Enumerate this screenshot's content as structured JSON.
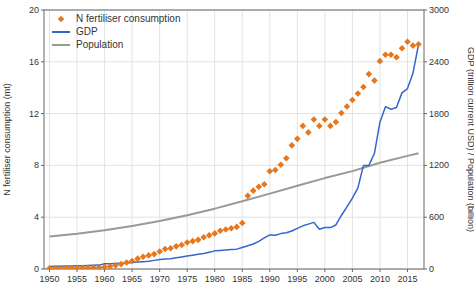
{
  "chart_data": {
    "type": "line",
    "title": "",
    "ylabel": "N fertiliser consumption (mt)",
    "y2label": "GDP (trillion current USD) / Population (billion)",
    "xlim": [
      1949,
      2018
    ],
    "xticks": [
      1950,
      1955,
      1960,
      1965,
      1970,
      1975,
      1980,
      1985,
      1990,
      1995,
      2000,
      2005,
      2010,
      2015
    ],
    "ylim": [
      0,
      20
    ],
    "yticks": [
      0,
      4,
      8,
      12,
      16,
      20
    ],
    "y2lim": [
      0,
      3000
    ],
    "y2ticks": [
      0,
      600,
      1200,
      1800,
      2400,
      3000
    ],
    "grid": true,
    "legend": "upper left",
    "series": [
      {
        "name": "N fertiliser consumption",
        "type": "scatter",
        "color": "#E8761A",
        "marker": "diamond",
        "x": [
          1950,
          1951,
          1952,
          1953,
          1954,
          1955,
          1956,
          1957,
          1958,
          1959,
          1960,
          1961,
          1962,
          1963,
          1964,
          1965,
          1966,
          1967,
          1968,
          1969,
          1970,
          1971,
          1972,
          1973,
          1974,
          1975,
          1976,
          1977,
          1978,
          1979,
          1980,
          1981,
          1982,
          1983,
          1984,
          1985,
          1986,
          1987,
          1988,
          1989,
          1990,
          1991,
          1992,
          1993,
          1994,
          1995,
          1996,
          1997,
          1998,
          1999,
          2000,
          2001,
          2002,
          2003,
          2004,
          2005,
          2006,
          2007,
          2008,
          2009,
          2010,
          2011,
          2012,
          2013,
          2014,
          2015,
          2016,
          2017
        ],
        "values": [
          0.05,
          0.06,
          0.06,
          0.07,
          0.07,
          0.08,
          0.09,
          0.1,
          0.11,
          0.12,
          0.15,
          0.2,
          0.28,
          0.38,
          0.5,
          0.62,
          0.8,
          0.95,
          1.05,
          1.15,
          1.35,
          1.55,
          1.6,
          1.75,
          1.85,
          2.05,
          2.15,
          2.25,
          2.45,
          2.6,
          2.75,
          2.95,
          3.05,
          3.15,
          3.25,
          3.55,
          5.65,
          6.05,
          6.35,
          6.55,
          7.55,
          7.65,
          8.05,
          8.55,
          9.55,
          10.05,
          11.05,
          10.55,
          11.55,
          11.05,
          11.55,
          11.05,
          11.35,
          12.05,
          12.55,
          13.05,
          13.55,
          14.05,
          15.05,
          14.55,
          16.05,
          16.55,
          16.55,
          16.35,
          17.05,
          17.55,
          17.25,
          17.35
        ]
      },
      {
        "name": "GDP",
        "type": "line",
        "color": "#3366cc",
        "axis": "y2",
        "x": [
          1950,
          1951,
          1952,
          1953,
          1954,
          1955,
          1956,
          1957,
          1958,
          1959,
          1960,
          1961,
          1962,
          1963,
          1964,
          1965,
          1966,
          1967,
          1968,
          1969,
          1970,
          1971,
          1972,
          1973,
          1974,
          1975,
          1976,
          1977,
          1978,
          1979,
          1980,
          1981,
          1982,
          1983,
          1984,
          1985,
          1986,
          1987,
          1988,
          1989,
          1990,
          1991,
          1992,
          1993,
          1994,
          1995,
          1996,
          1997,
          1998,
          1999,
          2000,
          2001,
          2002,
          2003,
          2004,
          2005,
          2006,
          2007,
          2008,
          2009,
          2010,
          2011,
          2012,
          2013,
          2014,
          2015,
          2016,
          2017
        ],
        "values": [
          30,
          32,
          33,
          35,
          36,
          37,
          38,
          40,
          43,
          45,
          60,
          62,
          65,
          68,
          70,
          75,
          80,
          85,
          90,
          100,
          110,
          115,
          120,
          130,
          140,
          150,
          160,
          170,
          180,
          195,
          210,
          215,
          220,
          225,
          230,
          250,
          270,
          290,
          320,
          360,
          395,
          390,
          410,
          420,
          440,
          470,
          500,
          520,
          540,
          460,
          480,
          480,
          510,
          620,
          720,
          820,
          940,
          1200,
          1200,
          1340,
          1700,
          1880,
          1850,
          1870,
          2040,
          2090,
          2270,
          2600
        ]
      },
      {
        "name": "Population",
        "type": "line",
        "color": "#999999",
        "axis": "y2",
        "x": [
          1950,
          1955,
          1960,
          1965,
          1970,
          1975,
          1980,
          1985,
          1990,
          1995,
          2000,
          2005,
          2010,
          2015,
          2017
        ],
        "values": [
          376,
          409,
          450,
          499,
          555,
          623,
          699,
          784,
          873,
          964,
          1053,
          1134,
          1230,
          1310,
          1340
        ]
      }
    ]
  }
}
